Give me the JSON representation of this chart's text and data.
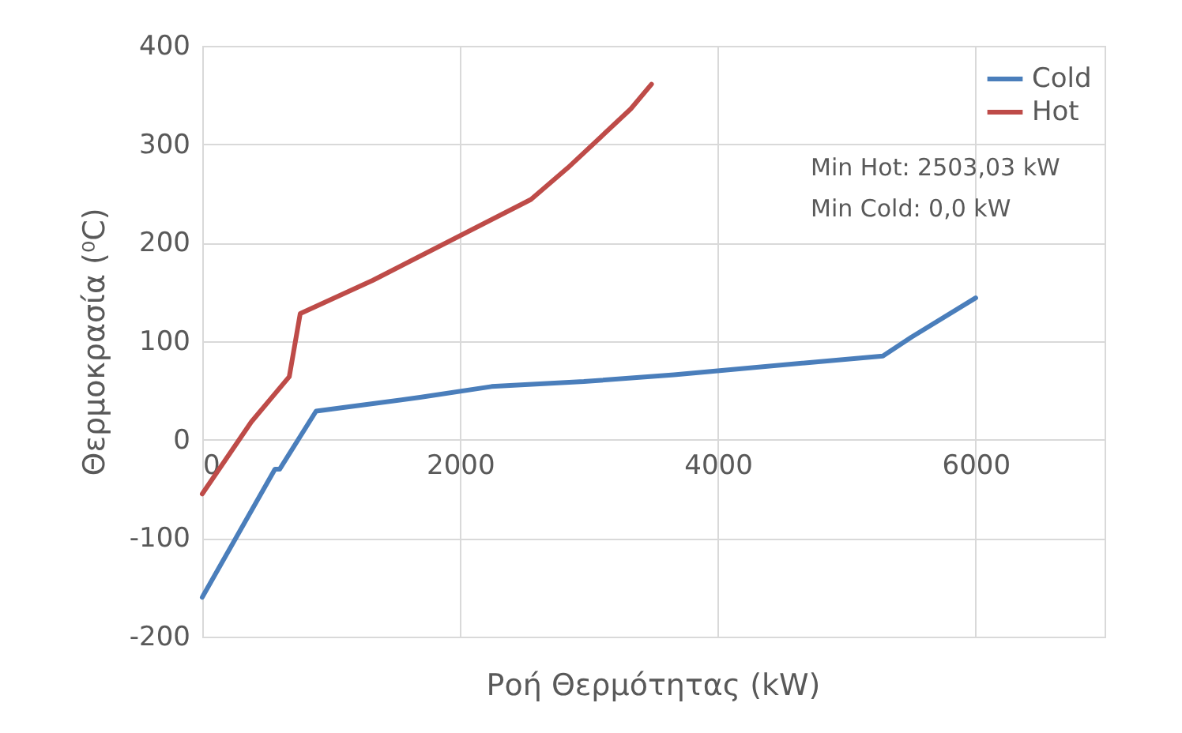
{
  "chart_data": {
    "type": "line",
    "xlabel": "Ροή Θερμότητας (kW)",
    "ylabel": "Θερμοκρασία (⁰C)",
    "xlim": [
      0,
      7000
    ],
    "xticks": [
      0,
      2000,
      4000,
      6000
    ],
    "ylim": [
      -200,
      400
    ],
    "yticks": [
      -200,
      -100,
      0,
      100,
      200,
      300,
      400
    ],
    "grid": true,
    "legend": "top right",
    "marker": "none",
    "line_style": "solid",
    "annotations": [
      "Min Hot: 2503,03 kW",
      "Min Cold: 0,0 kW"
    ],
    "series": [
      {
        "name": "Cold",
        "color": "#4a7ebb",
        "x": [
          0,
          564,
          600,
          883,
          1690,
          2245,
          2960,
          3660,
          5280,
          5500,
          6000
        ],
        "values": [
          -160,
          -30,
          -30,
          29,
          43,
          54,
          59,
          66,
          85,
          104,
          144
        ]
      },
      {
        "name": "Hot",
        "color": "#be4b48",
        "x": [
          0,
          380,
          675,
          760,
          1325,
          2550,
          2835,
          3325,
          3485
        ],
        "values": [
          -55,
          18,
          64,
          128,
          162,
          244,
          276,
          336,
          361
        ]
      }
    ]
  }
}
